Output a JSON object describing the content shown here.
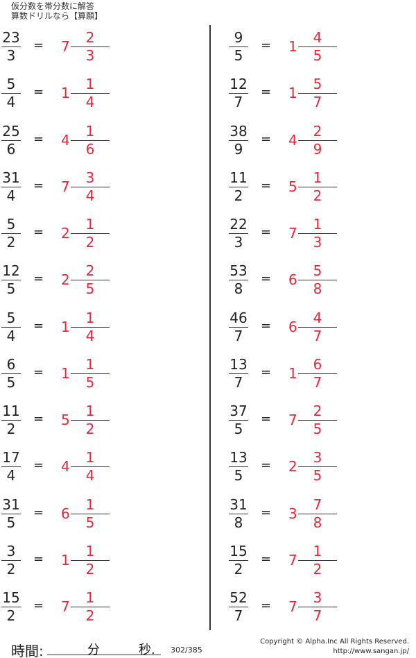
{
  "header": {
    "line1": "仮分数を帯分数に解答",
    "line2": "算数ドリルなら【算願】"
  },
  "colors": {
    "answer": "#e8273a",
    "text": "#222222"
  },
  "equals": "=",
  "left": [
    {
      "n": "23",
      "d": "3",
      "w": "7",
      "an": "2",
      "ad": "3"
    },
    {
      "n": "5",
      "d": "4",
      "w": "1",
      "an": "1",
      "ad": "4"
    },
    {
      "n": "25",
      "d": "6",
      "w": "4",
      "an": "1",
      "ad": "6"
    },
    {
      "n": "31",
      "d": "4",
      "w": "7",
      "an": "3",
      "ad": "4"
    },
    {
      "n": "5",
      "d": "2",
      "w": "2",
      "an": "1",
      "ad": "2"
    },
    {
      "n": "12",
      "d": "5",
      "w": "2",
      "an": "2",
      "ad": "5"
    },
    {
      "n": "5",
      "d": "4",
      "w": "1",
      "an": "1",
      "ad": "4"
    },
    {
      "n": "6",
      "d": "5",
      "w": "1",
      "an": "1",
      "ad": "5"
    },
    {
      "n": "11",
      "d": "2",
      "w": "5",
      "an": "1",
      "ad": "2"
    },
    {
      "n": "17",
      "d": "4",
      "w": "4",
      "an": "1",
      "ad": "4"
    },
    {
      "n": "31",
      "d": "5",
      "w": "6",
      "an": "1",
      "ad": "5"
    },
    {
      "n": "3",
      "d": "2",
      "w": "1",
      "an": "1",
      "ad": "2"
    },
    {
      "n": "15",
      "d": "2",
      "w": "7",
      "an": "1",
      "ad": "2"
    }
  ],
  "right": [
    {
      "n": "9",
      "d": "5",
      "w": "1",
      "an": "4",
      "ad": "5"
    },
    {
      "n": "12",
      "d": "7",
      "w": "1",
      "an": "5",
      "ad": "7"
    },
    {
      "n": "38",
      "d": "9",
      "w": "4",
      "an": "2",
      "ad": "9"
    },
    {
      "n": "11",
      "d": "2",
      "w": "5",
      "an": "1",
      "ad": "2"
    },
    {
      "n": "22",
      "d": "3",
      "w": "7",
      "an": "1",
      "ad": "3"
    },
    {
      "n": "53",
      "d": "8",
      "w": "6",
      "an": "5",
      "ad": "8"
    },
    {
      "n": "46",
      "d": "7",
      "w": "6",
      "an": "4",
      "ad": "7"
    },
    {
      "n": "13",
      "d": "7",
      "w": "1",
      "an": "6",
      "ad": "7"
    },
    {
      "n": "37",
      "d": "5",
      "w": "7",
      "an": "2",
      "ad": "5"
    },
    {
      "n": "13",
      "d": "5",
      "w": "2",
      "an": "3",
      "ad": "5"
    },
    {
      "n": "31",
      "d": "8",
      "w": "3",
      "an": "7",
      "ad": "8"
    },
    {
      "n": "15",
      "d": "2",
      "w": "7",
      "an": "1",
      "ad": "2"
    },
    {
      "n": "52",
      "d": "7",
      "w": "7",
      "an": "3",
      "ad": "7"
    }
  ],
  "footer": {
    "time_label": "時間:",
    "minutes": "分",
    "seconds": "秒.",
    "page": "302/385",
    "copyright": "Copyright ©  Alpha.Inc All Rights Reserved.",
    "url": "http://www.sangan.jp/"
  }
}
